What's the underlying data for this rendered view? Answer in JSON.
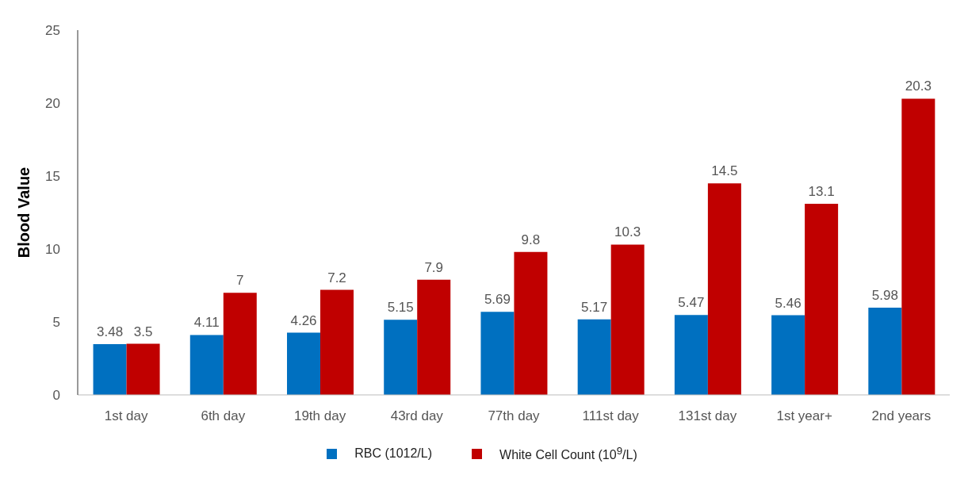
{
  "chart_data": {
    "type": "bar",
    "ylabel": "Blood Value",
    "categories": [
      "1st day",
      "6th day",
      "19th day",
      "43rd day",
      "77th day",
      "111st day",
      "131st day",
      "1st year+",
      "2nd years"
    ],
    "series": [
      {
        "name": "RBC (1012/L)",
        "color": "#0070c0",
        "values": [
          3.48,
          4.11,
          4.26,
          5.15,
          5.69,
          5.17,
          5.47,
          5.46,
          5.98
        ]
      },
      {
        "name": "White Cell Count (10$^{9}$/L)",
        "color": "#c00000",
        "values": [
          3.5,
          7,
          7.2,
          7.9,
          9.8,
          10.3,
          14.5,
          13.1,
          20.3
        ]
      }
    ],
    "ylim": [
      0,
      25
    ],
    "yticks": [
      0,
      5,
      10,
      15,
      20,
      25
    ],
    "grid": false,
    "legend": "bottom",
    "data_labels": true
  }
}
